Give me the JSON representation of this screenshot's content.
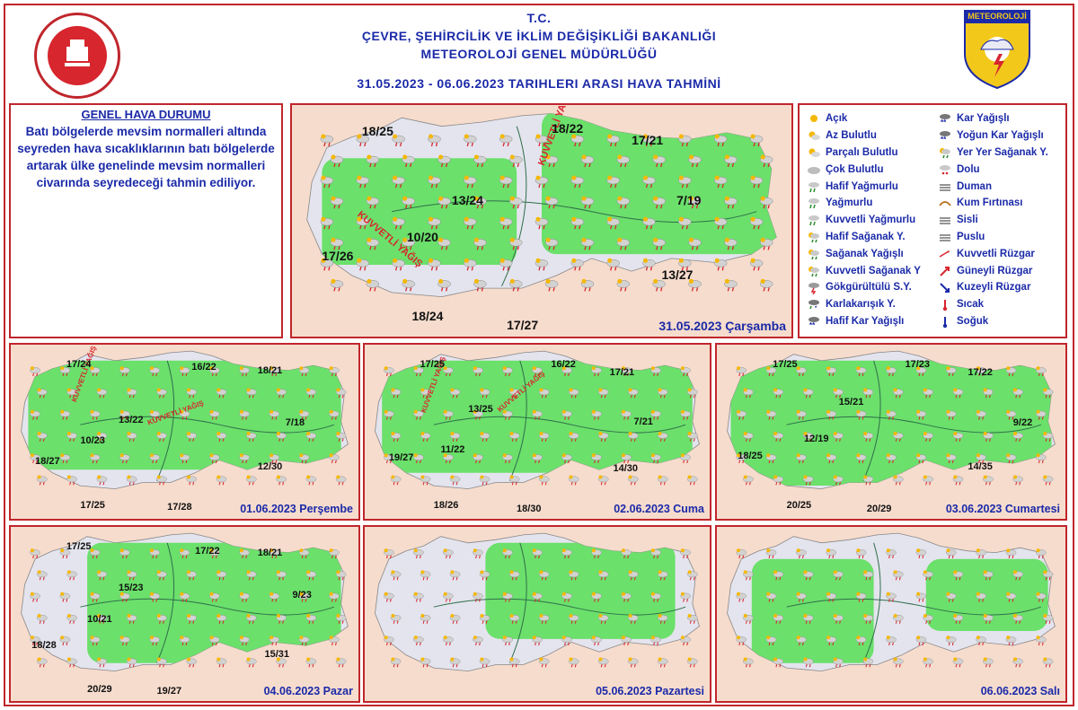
{
  "header": {
    "line1": "T.C.",
    "line2": "ÇEVRE, ŞEHİRCİLİK VE İKLİM DEĞİŞİKLİĞİ BAKANLIĞI",
    "line3": "METEOROLOJİ GENEL MÜDÜRLÜĞÜ",
    "line4": "31.05.2023 - 06.06.2023 TARIHLERI ARASI HAVA TAHMİNİ",
    "logo_text": "METEOROLOJİ"
  },
  "general": {
    "title": "GENEL HAVA DURUMU",
    "text": "Batı bölgelerde mevsim normalleri altında seyreden hava sıcaklıklarının batı bölgelerde artarak ülke genelinde mevsim normalleri civarında seyredeceği tahmin ediliyor."
  },
  "legend": {
    "col1": [
      "Açık",
      "Az Bulutlu",
      "Parçalı Bulutlu",
      "Çok Bulutlu",
      "Hafif Yağmurlu",
      "Yağmurlu",
      "Kuvvetli Yağmurlu",
      "Hafif Sağanak Y.",
      "Sağanak Yağışlı",
      "Kuvvetli Sağanak Y",
      "Gökgürültülü S.Y.",
      "Karlakarışık Y.",
      "Hafif Kar Yağışlı"
    ],
    "col2": [
      "Kar Yağışlı",
      "Yoğun Kar Yağışlı",
      "Yer Yer Sağanak Y.",
      "Dolu",
      "Duman",
      "Kum Fırtınası",
      "Sisli",
      "Puslu",
      "Kuvvetli Rüzgar",
      "Güneyli Rüzgar",
      "Kuzeyli Rüzgar",
      "Sıcak",
      "Soğuk"
    ]
  },
  "maps": [
    {
      "day": "31.05.2023 Çarşamba",
      "temps": [
        "18/25",
        "18/22",
        "17/21",
        "13/24",
        "10/20",
        "7/19",
        "17/26",
        "13/27",
        "18/24",
        "17/27"
      ],
      "notes": [
        "KUVVETLİ YAĞIŞ",
        "KUVVETLİ YAĞIŞ"
      ]
    },
    {
      "day": "01.06.2023 Perşembe",
      "temps": [
        "17/24",
        "16/22",
        "18/21",
        "13/22",
        "10/23",
        "7/18",
        "18/27",
        "12/30",
        "17/25",
        "17/28"
      ],
      "notes": [
        "KUVVETLİ YAĞIŞ",
        "KUVVETLİ YAĞIŞ"
      ]
    },
    {
      "day": "02.06.2023 Cuma",
      "temps": [
        "17/25",
        "16/22",
        "17/21",
        "13/25",
        "7/21",
        "11/22",
        "19/27",
        "14/30",
        "18/26",
        "18/30"
      ],
      "notes": [
        "KUVVETLİ YAĞIŞ",
        "KUVVETLİ YAĞIŞ"
      ]
    },
    {
      "day": "03.06.2023 Cumartesi",
      "temps": [
        "17/25",
        "17/23",
        "17/22",
        "15/21",
        "12/19",
        "9/22",
        "18/25",
        "14/35",
        "20/25",
        "20/29"
      ],
      "notes": []
    },
    {
      "day": "04.06.2023 Pazar",
      "temps": [
        "17/25",
        "17/22",
        "18/21",
        "15/23",
        "9/23",
        "10/21",
        "18/28",
        "15/31",
        "20/29",
        "19/27"
      ],
      "notes": []
    },
    {
      "day": "05.06.2023 Pazartesi",
      "temps": [],
      "notes": []
    },
    {
      "day": "06.06.2023 Salı",
      "temps": [],
      "notes": []
    }
  ]
}
